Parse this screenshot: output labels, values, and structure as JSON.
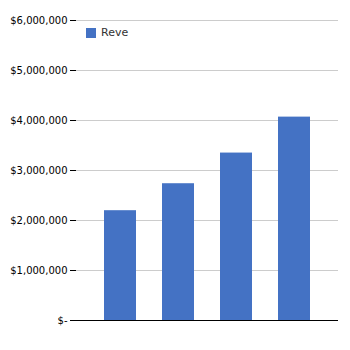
{
  "chart_data": {
    "type": "bar",
    "categories": [
      null,
      null,
      null,
      null
    ],
    "series": [
      {
        "name": "Reve",
        "color": "#4472c4",
        "values": [
          2196079,
          2735506,
          3348701,
          4067671
        ]
      }
    ],
    "ylim": [
      0,
      6000000
    ],
    "yticks": [
      {
        "value": 0,
        "label": "$-"
      },
      {
        "value": 1000000,
        "label": "$1,000,000"
      },
      {
        "value": 2000000,
        "label": "$2,000,000"
      },
      {
        "value": 3000000,
        "label": "$3,000,000"
      },
      {
        "value": 4000000,
        "label": "$4,000,000"
      },
      {
        "value": 5000000,
        "label": "$5,000,000"
      },
      {
        "value": 6000000,
        "label": "$6,000,000"
      }
    ],
    "grid": true,
    "legend": "upper left"
  }
}
